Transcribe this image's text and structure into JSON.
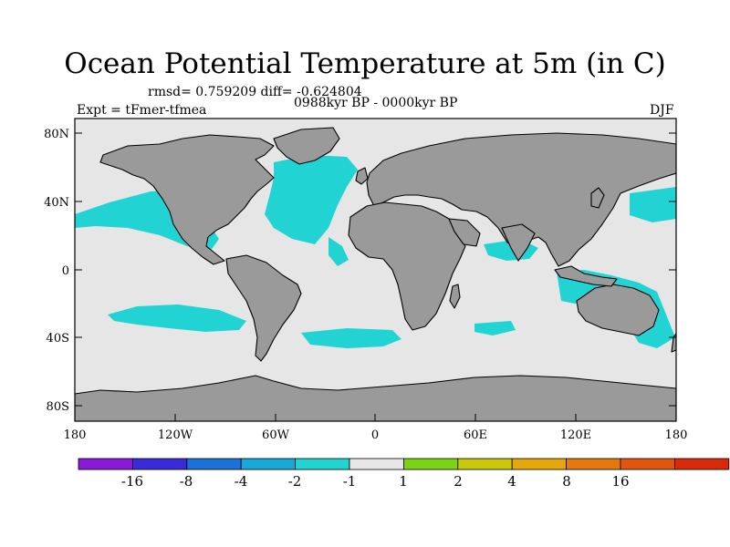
{
  "title": "Ocean Potential Temperature at 5m (in C)",
  "stats_line": "rmsd= 0.759209 diff= -0.624804",
  "period": "0988kyr BP - 0000kyr BP",
  "experiment": "Expt = tFmer-tfmea",
  "season": "DJF",
  "lat_ticks": [
    "80N",
    "40N",
    "0",
    "40S",
    "80S"
  ],
  "lon_ticks": [
    "180",
    "120W",
    "60W",
    "0",
    "60E",
    "120E",
    "180"
  ],
  "colors": {
    "land": "#9a9a9a",
    "ocean": "#e6e6e6",
    "anomaly": "#22d3d3",
    "coast": "#000000"
  },
  "colorbar": {
    "colors": [
      "#8a1ad8",
      "#3b2ad8",
      "#1a72d8",
      "#18a8d8",
      "#20d4d0",
      "#e6e6e6",
      "#7ad414",
      "#c8c80c",
      "#e4a80c",
      "#e4780c",
      "#e0560c",
      "#d82a08"
    ],
    "labels": [
      "-16",
      "-8",
      "-4",
      "-2",
      "-1",
      "1",
      "2",
      "4",
      "8",
      "16"
    ]
  }
}
